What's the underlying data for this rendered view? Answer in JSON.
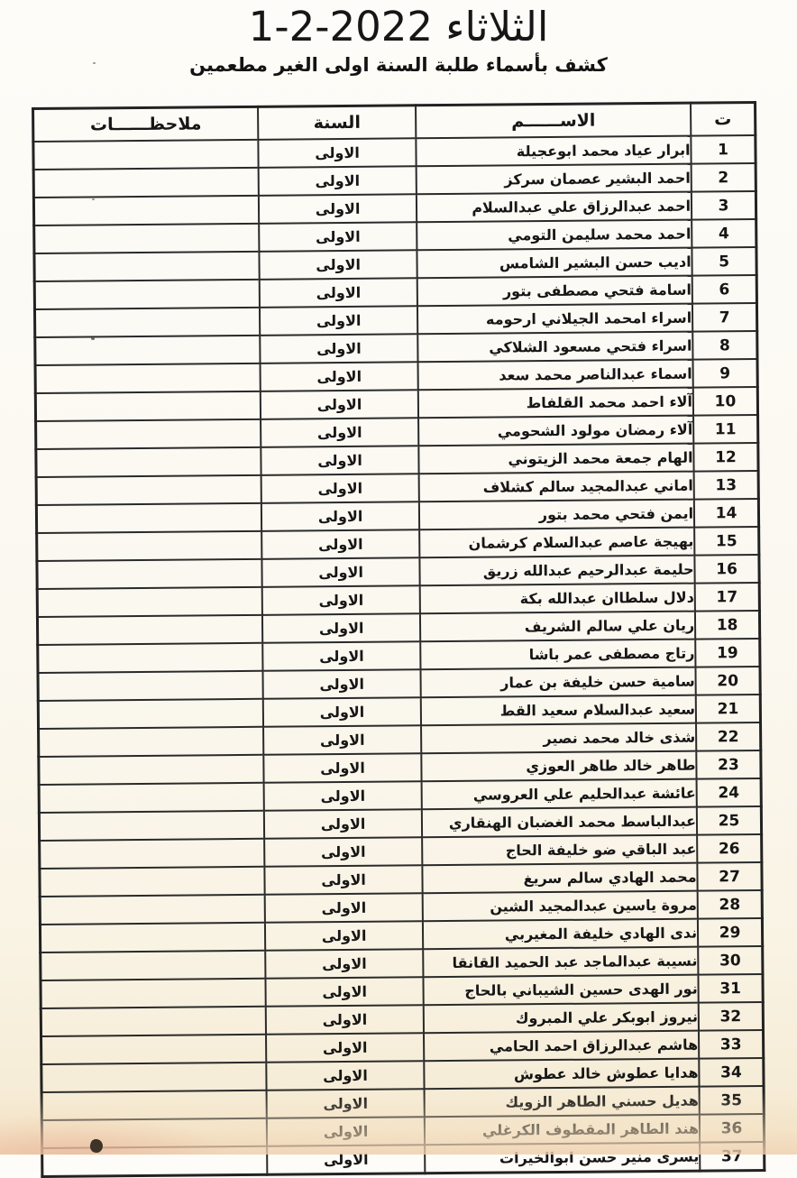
{
  "page": {
    "title": "الثلاثاء 2022-2-1",
    "subtitle": "كشف بأسماء طلبة السنة اولى الغير مطعمين"
  },
  "colors": {
    "paper": "#fbf8f0",
    "paper_bottom": "#f4e6cb",
    "ink": "#161616",
    "table_border": "#2a2a2a",
    "smudge": "#3d3328"
  },
  "table": {
    "headers": {
      "number": "ت",
      "name": "الاســــــم",
      "year": "السنة",
      "notes": "ملاحظــــــات"
    },
    "rows": [
      {
        "number": "1",
        "name": "ابرار عياد محمد ابوعجيلة",
        "year": "الاولى",
        "notes": ""
      },
      {
        "number": "2",
        "name": "احمد البشير عصمان سركز",
        "year": "الاولى",
        "notes": ""
      },
      {
        "number": "3",
        "name": "احمد عبدالرزاق علي عبدالسلام",
        "year": "الاولى",
        "notes": ""
      },
      {
        "number": "4",
        "name": "احمد محمد سليمن التومي",
        "year": "الاولى",
        "notes": ""
      },
      {
        "number": "5",
        "name": "اديب حسن البشير الشامس",
        "year": "الاولى",
        "notes": ""
      },
      {
        "number": "6",
        "name": "اسامة فتحي مصطفى بتور",
        "year": "الاولى",
        "notes": ""
      },
      {
        "number": "7",
        "name": "اسراء امحمد الجيلاني ارحومه",
        "year": "الاولى",
        "notes": ""
      },
      {
        "number": "8",
        "name": "اسراء فتحي مسعود الشلاكي",
        "year": "الاولى",
        "notes": ""
      },
      {
        "number": "9",
        "name": "اسماء عبدالناصر محمد سعد",
        "year": "الاولى",
        "notes": ""
      },
      {
        "number": "10",
        "name": "آلاء احمد محمد القلفاط",
        "year": "الاولى",
        "notes": ""
      },
      {
        "number": "11",
        "name": "آلاء رمضان مولود الشحومي",
        "year": "الاولى",
        "notes": ""
      },
      {
        "number": "12",
        "name": "الهام جمعة محمد الزيتوني",
        "year": "الاولى",
        "notes": ""
      },
      {
        "number": "13",
        "name": "اماني عبدالمجيد سالم كشلاف",
        "year": "الاولى",
        "notes": ""
      },
      {
        "number": "14",
        "name": "ايمن فتحي محمد بتور",
        "year": "الاولى",
        "notes": ""
      },
      {
        "number": "15",
        "name": "بهيجة عاصم عبدالسلام كرشمان",
        "year": "الاولى",
        "notes": ""
      },
      {
        "number": "16",
        "name": "حليمة عبدالرحيم عبدالله زريق",
        "year": "الاولى",
        "notes": ""
      },
      {
        "number": "17",
        "name": "دلال سلطاان عبدالله بكة",
        "year": "الاولى",
        "notes": ""
      },
      {
        "number": "18",
        "name": "ريان علي سالم الشريف",
        "year": "الاولى",
        "notes": ""
      },
      {
        "number": "19",
        "name": "رتاج مصطفى عمر باشا",
        "year": "الاولى",
        "notes": ""
      },
      {
        "number": "20",
        "name": "سامية حسن خليفة بن عمار",
        "year": "الاولى",
        "notes": ""
      },
      {
        "number": "21",
        "name": "سعيد عبدالسلام سعيد القط",
        "year": "الاولى",
        "notes": ""
      },
      {
        "number": "22",
        "name": "شذى خالد محمد نصير",
        "year": "الاولى",
        "notes": ""
      },
      {
        "number": "23",
        "name": "طاهر خالد طاهر العوزي",
        "year": "الاولى",
        "notes": ""
      },
      {
        "number": "24",
        "name": "عائشة عبدالحليم علي العروسي",
        "year": "الاولى",
        "notes": ""
      },
      {
        "number": "25",
        "name": "عبدالباسط محمد الغضبان الهنقاري",
        "year": "الاولى",
        "notes": ""
      },
      {
        "number": "26",
        "name": "عبد الباقي ضو خليفة الحاج",
        "year": "الاولى",
        "notes": ""
      },
      {
        "number": "27",
        "name": "محمد الهادي سالم سريغ",
        "year": "الاولى",
        "notes": ""
      },
      {
        "number": "28",
        "name": "مروة ياسين عبدالمجيد الشين",
        "year": "الاولى",
        "notes": ""
      },
      {
        "number": "29",
        "name": "ندى الهادي خليفة المغيربي",
        "year": "الاولى",
        "notes": ""
      },
      {
        "number": "30",
        "name": "نسيبة عبدالماجد عبد الحميد القانقا",
        "year": "الاولى",
        "notes": ""
      },
      {
        "number": "31",
        "name": "نور الهدى حسين الشيباني بالحاج",
        "year": "الاولى",
        "notes": ""
      },
      {
        "number": "32",
        "name": "نيروز ابوبكر علي المبروك",
        "year": "الاولى",
        "notes": ""
      },
      {
        "number": "33",
        "name": "هاشم عبدالرزاق احمد الحامي",
        "year": "الاولى",
        "notes": ""
      },
      {
        "number": "34",
        "name": "هدايا عطوش خالد عطوش",
        "year": "الاولى",
        "notes": ""
      },
      {
        "number": "35",
        "name": "هديل حسني الطاهر الزويك",
        "year": "الاولى",
        "notes": ""
      },
      {
        "number": "36",
        "name": "هند الطاهر المقطوف الكرغلي",
        "year": "الاولى",
        "notes": ""
      },
      {
        "number": "37",
        "name": "يسرى منير حسن ابوالخيرات",
        "year": "الاولى",
        "notes": ""
      }
    ]
  }
}
